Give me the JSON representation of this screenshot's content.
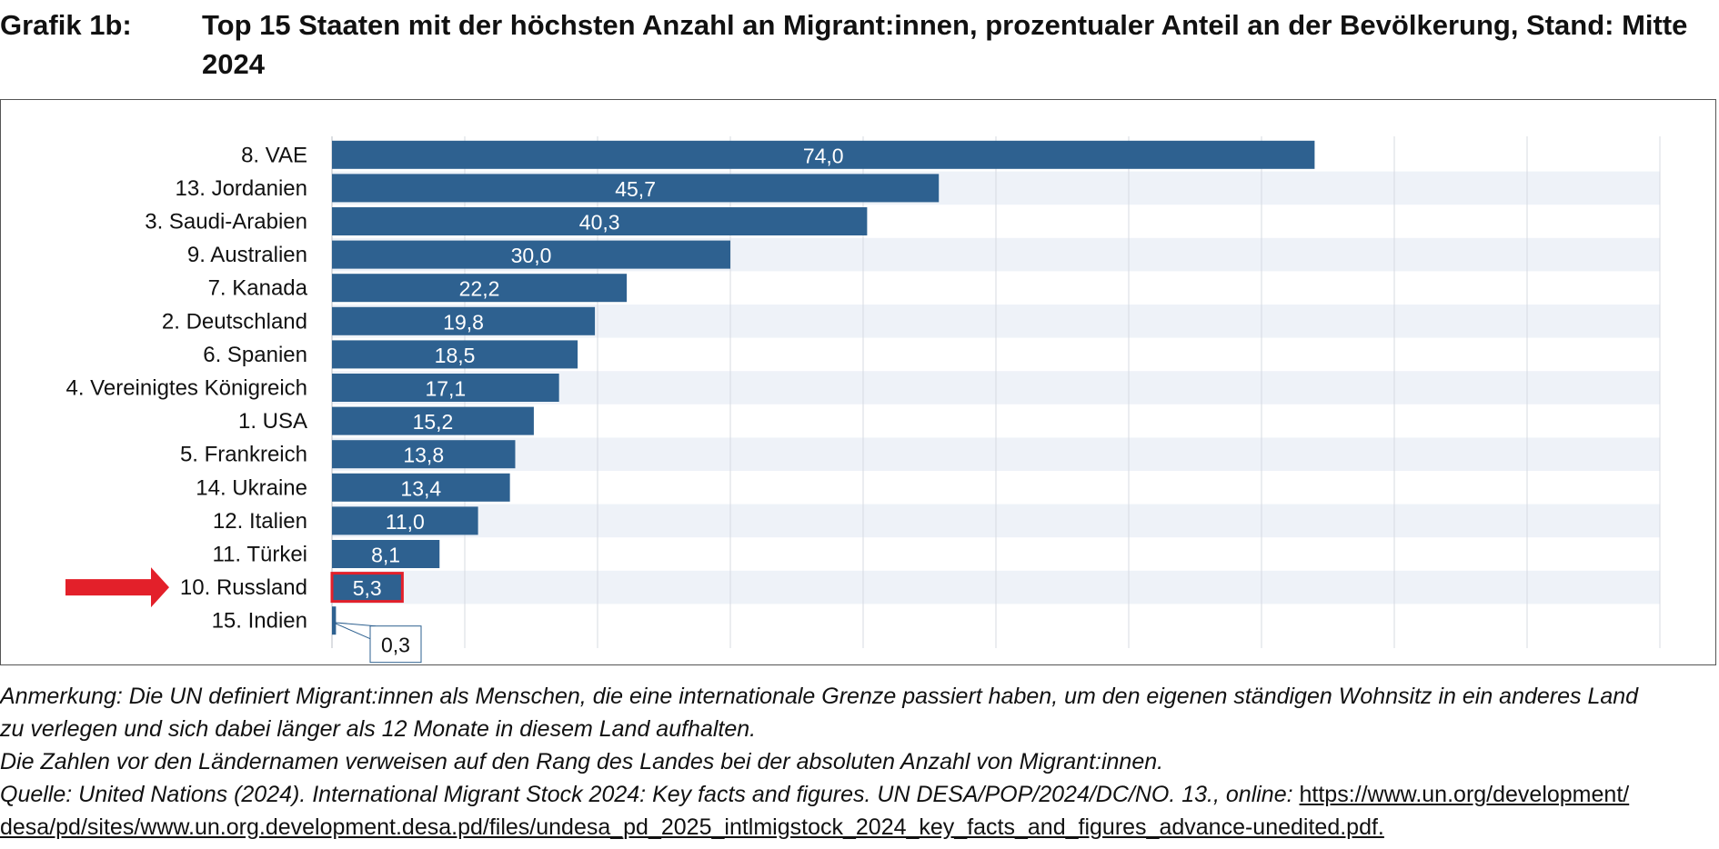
{
  "header": {
    "grafik_label": "Grafik 1b:",
    "title": "Top 15 Staaten mit der höchsten Anzahl an Migrant:innen, prozentualer Anteil an der Bevölkerung, Stand: Mitte 2024"
  },
  "chart_data": {
    "type": "bar",
    "orientation": "horizontal",
    "title": "Top 15 Staaten mit der höchsten Anzahl an Migrant:innen, prozentualer Anteil an der Bevölkerung, Stand: Mitte 2024",
    "xlabel": "",
    "ylabel": "",
    "xlim": [
      0,
      100
    ],
    "grid": true,
    "categories": [
      "8. VAE",
      "13. Jordanien",
      "3. Saudi-Arabien",
      "9. Australien",
      "7. Kanada",
      "2. Deutschland",
      "6. Spanien",
      "4. Vereinigtes Königreich",
      "1. USA",
      "5. Frankreich",
      "14. Ukraine",
      "12. Italien",
      "11. Türkei",
      "10. Russland",
      "15. Indien"
    ],
    "values": [
      74.0,
      45.7,
      40.3,
      30.0,
      22.2,
      19.8,
      18.5,
      17.1,
      15.2,
      13.8,
      13.4,
      11.0,
      8.1,
      5.3,
      0.3
    ],
    "value_labels": [
      "74,0",
      "45,7",
      "40,3",
      "30,0",
      "22,2",
      "19,8",
      "18,5",
      "17,1",
      "15,2",
      "13,8",
      "13,4",
      "11,0",
      "8,1",
      "5,3",
      "0,3"
    ],
    "highlight_category": "10. Russland",
    "callout_category": "15. Indien",
    "colors": {
      "bar": "#2e6190",
      "highlight": "#e3202a",
      "band": "#eef2f8",
      "grid": "#d7dbe2"
    }
  },
  "notes": {
    "line1": "Anmerkung: Die UN definiert Migrant:innen als Menschen, die eine internationale Grenze passiert haben, um den eigenen ständigen Wohnsitz in ein anderes Land",
    "line2": "zu verlegen und sich dabei länger als 12 Monate in diesem Land aufhalten.",
    "line3": "Die Zahlen vor den Ländernamen verweisen auf den Rang des Landes bei der absoluten Anzahl von Migrant:innen.",
    "source_prefix": "Quelle: United Nations (2024). International Migrant Stock 2024: Key facts and figures. UN DESA/POP/2024/DC/NO. 13., online: ",
    "url_part1": "https://www.un.org/development/",
    "url_part2": "desa/pd/sites/www.un.org.development.desa.pd/files/undesa_pd_2025_intlmigstock_2024_key_facts_and_figures_advance-unedited.pdf."
  }
}
